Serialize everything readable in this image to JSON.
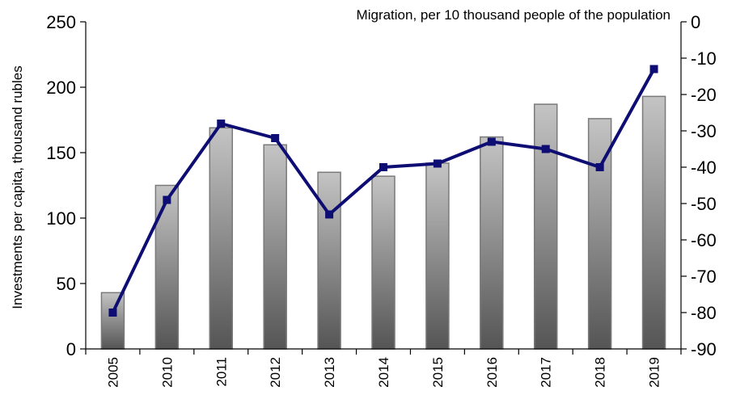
{
  "chart_data": {
    "type": "bar+line",
    "categories": [
      "2005",
      "2010",
      "2011",
      "2012",
      "2013",
      "2014",
      "2015",
      "2016",
      "2017",
      "2018",
      "2019"
    ],
    "series": [
      {
        "name": "Investments per capita, thousand rubles",
        "type": "bar",
        "axis": "left",
        "values": [
          43,
          125,
          169,
          156,
          135,
          132,
          142,
          162,
          187,
          176,
          193
        ]
      },
      {
        "name": "Migration, per 10 thousand people of the population",
        "type": "line",
        "axis": "right",
        "values": [
          -80,
          -49,
          -28,
          -32,
          -53,
          -40,
          -39,
          -33,
          -35,
          -40,
          -13
        ]
      }
    ],
    "y_left": {
      "label": "Investments per capita, thousand rubles",
      "range": [
        0,
        250
      ],
      "ticks": [
        "0",
        "50",
        "100",
        "150",
        "200",
        "250"
      ]
    },
    "y_right": {
      "label": "Migration, per 10 thousand people of the population",
      "range": [
        -90,
        0
      ],
      "ticks": [
        "0",
        "-10",
        "-20",
        "-30",
        "-40",
        "-50",
        "-60",
        "-70",
        "-80",
        "-90"
      ]
    },
    "grid": false,
    "legend": "none",
    "colors": {
      "line": "#0d0d73",
      "bar_top": "#c4c4c4",
      "bar_bottom": "#555555",
      "bar_stroke": "#7a7a7a",
      "axis": "#000000"
    }
  }
}
